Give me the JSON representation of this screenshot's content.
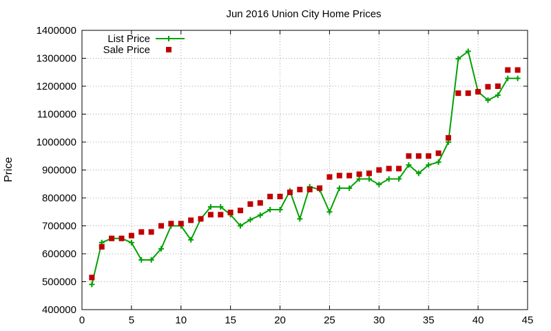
{
  "chart_data": {
    "type": "line",
    "title": "Jun 2016 Union City Home Prices",
    "xlabel": "",
    "ylabel": "Price",
    "xlim": [
      0,
      45
    ],
    "ylim": [
      400000,
      1400000
    ],
    "xticks": [
      0,
      5,
      10,
      15,
      20,
      25,
      30,
      35,
      40,
      45
    ],
    "yticks": [
      400000,
      500000,
      600000,
      700000,
      800000,
      900000,
      1000000,
      1100000,
      1200000,
      1300000,
      1400000
    ],
    "grid": true,
    "legend_position": "top-left",
    "x": [
      1,
      2,
      3,
      4,
      5,
      6,
      7,
      8,
      9,
      10,
      11,
      12,
      13,
      14,
      15,
      16,
      17,
      18,
      19,
      20,
      21,
      22,
      23,
      24,
      25,
      26,
      27,
      28,
      29,
      30,
      31,
      32,
      33,
      34,
      35,
      36,
      37,
      38,
      39,
      40,
      41,
      42,
      43,
      44
    ],
    "series": [
      {
        "name": "List Price",
        "style": "line-with-plus-markers",
        "color": "#00a000",
        "values": [
          490000,
          640000,
          655000,
          655000,
          640000,
          578000,
          578000,
          618000,
          700000,
          700000,
          650000,
          725000,
          768000,
          768000,
          740000,
          700000,
          722000,
          738000,
          758000,
          758000,
          825000,
          725000,
          840000,
          830000,
          750000,
          835000,
          835000,
          868000,
          868000,
          848000,
          868000,
          868000,
          918000,
          888000,
          918000,
          928000,
          1000000,
          1298000,
          1325000,
          1180000,
          1150000,
          1168000,
          1228000,
          1228000
        ]
      },
      {
        "name": "Sale Price",
        "style": "square-markers",
        "color": "#c00000",
        "values": [
          515000,
          625000,
          655000,
          655000,
          665000,
          678000,
          678000,
          700000,
          708000,
          708000,
          720000,
          725000,
          740000,
          740000,
          748000,
          755000,
          778000,
          782000,
          805000,
          805000,
          820000,
          830000,
          830000,
          835000,
          875000,
          880000,
          880000,
          885000,
          888000,
          900000,
          905000,
          905000,
          950000,
          950000,
          950000,
          960000,
          1015000,
          1175000,
          1175000,
          1180000,
          1198000,
          1200000,
          1258000,
          1258000
        ]
      }
    ]
  }
}
